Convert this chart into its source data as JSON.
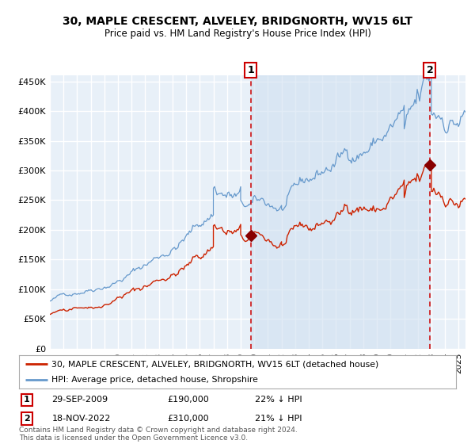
{
  "title": "30, MAPLE CRESCENT, ALVELEY, BRIDGNORTH, WV15 6LT",
  "subtitle": "Price paid vs. HM Land Registry's House Price Index (HPI)",
  "xlim": [
    1995.0,
    2025.5
  ],
  "ylim": [
    0,
    460000
  ],
  "yticks": [
    0,
    50000,
    100000,
    150000,
    200000,
    250000,
    300000,
    350000,
    400000,
    450000
  ],
  "ytick_labels": [
    "£0",
    "£50K",
    "£100K",
    "£150K",
    "£200K",
    "£250K",
    "£300K",
    "£350K",
    "£400K",
    "£450K"
  ],
  "bg_color": "#e8f0f8",
  "grid_color": "#ffffff",
  "hpi_color": "#6699cc",
  "price_color": "#cc2200",
  "marker_color": "#880000",
  "vline_color": "#cc0000",
  "span_color": "#d0e0f0",
  "vline1_x": 2009.75,
  "vline2_x": 2022.88,
  "sale1_x": 2009.75,
  "sale1_y": 190000,
  "sale2_x": 2022.88,
  "sale2_y": 310000,
  "legend_line1": "30, MAPLE CRESCENT, ALVELEY, BRIDGNORTH, WV15 6LT (detached house)",
  "legend_line2": "HPI: Average price, detached house, Shropshire",
  "note1_date": "29-SEP-2009",
  "note1_price": "£190,000",
  "note1_hpi": "22% ↓ HPI",
  "note2_date": "18-NOV-2022",
  "note2_price": "£310,000",
  "note2_hpi": "21% ↓ HPI",
  "footer": "Contains HM Land Registry data © Crown copyright and database right 2024.\nThis data is licensed under the Open Government Licence v3.0."
}
